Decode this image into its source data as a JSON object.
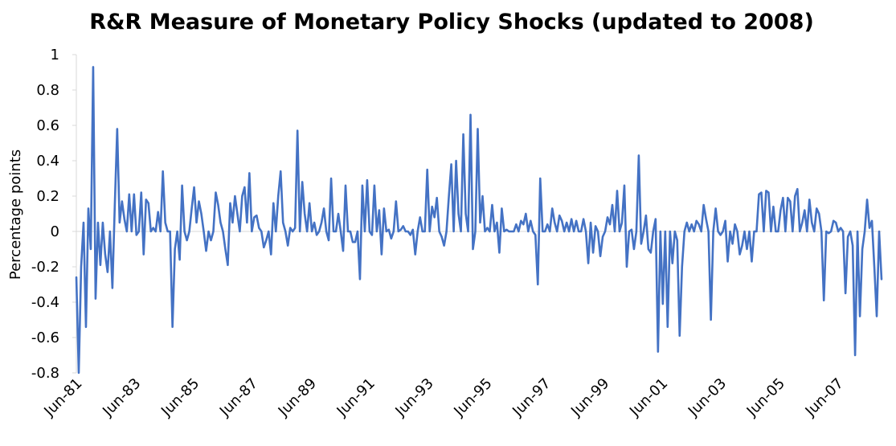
{
  "chart_data": {
    "type": "line",
    "title": "R&R Measure of Monetary Policy Shocks (updated to 2008)",
    "xlabel": "",
    "ylabel": "Percentage points",
    "ylim": [
      -0.8,
      1
    ],
    "y_ticks": [
      "1",
      "0.8",
      "0.6",
      "0.4",
      "0.2",
      "0",
      "-0.2",
      "-0.4",
      "-0.6",
      "-0.8"
    ],
    "x_tick_labels": [
      "Jun-81",
      "Jun-83",
      "Jun-85",
      "Jun-87",
      "Jun-89",
      "Jun-91",
      "Jun-93",
      "Jun-95",
      "Jun-97",
      "Jun-99",
      "Jun-01",
      "Jun-03",
      "Jun-05",
      "Jun-07"
    ],
    "grid": false,
    "legend": "none",
    "line_color": "#4472C4",
    "x_start": "1981-06",
    "x_end": "2008-12",
    "series": [
      {
        "values": [
          -0.26,
          -0.8,
          -0.2,
          0.05,
          -0.54,
          0.13,
          -0.1,
          0.93,
          -0.38,
          0.05,
          -0.19,
          0.05,
          -0.13,
          -0.23,
          0.0,
          -0.32,
          0.15,
          0.58,
          0.05,
          0.17,
          0.07,
          0.0,
          0.21,
          0.0,
          0.21,
          -0.02,
          0.0,
          0.22,
          -0.13,
          0.18,
          0.16,
          0.0,
          0.02,
          0.0,
          0.11,
          0.0,
          0.34,
          0.05,
          0.0,
          0.0,
          -0.54,
          -0.1,
          0.0,
          -0.16,
          0.26,
          0.0,
          -0.05,
          0.0,
          0.13,
          0.25,
          0.05,
          0.17,
          0.1,
          0.0,
          -0.11,
          0.0,
          -0.05,
          0.0,
          0.22,
          0.15,
          0.05,
          0.0,
          -0.1,
          -0.19,
          0.16,
          0.05,
          0.2,
          0.1,
          0.0,
          0.2,
          0.25,
          0.05,
          0.33,
          0.0,
          0.08,
          0.09,
          0.02,
          0.0,
          -0.09,
          -0.05,
          0.0,
          -0.13,
          0.16,
          0.0,
          0.2,
          0.34,
          0.05,
          0.0,
          -0.08,
          0.02,
          0.0,
          0.02,
          0.57,
          0.0,
          0.28,
          0.1,
          0.0,
          0.16,
          0.0,
          0.05,
          -0.02,
          0.0,
          0.05,
          0.13,
          0.0,
          -0.05,
          0.3,
          0.0,
          0.0,
          0.1,
          0.0,
          -0.11,
          0.26,
          0.0,
          0.0,
          -0.06,
          -0.06,
          0.0,
          -0.27,
          0.26,
          0.0,
          0.29,
          0.0,
          -0.02,
          0.26,
          0.0,
          0.12,
          -0.13,
          0.13,
          0.0,
          0.01,
          -0.04,
          0.0,
          0.17,
          0.0,
          0.01,
          0.03,
          0.0,
          0.0,
          -0.02,
          0.01,
          -0.13,
          0.0,
          0.08,
          0.0,
          0.0,
          0.35,
          0.0,
          0.14,
          0.08,
          0.19,
          0.0,
          -0.03,
          -0.08,
          0.0,
          0.2,
          0.38,
          0.0,
          0.4,
          0.1,
          0.0,
          0.55,
          0.1,
          0.0,
          0.66,
          -0.1,
          0.0,
          0.58,
          0.05,
          0.2,
          0.0,
          0.02,
          0.0,
          0.15,
          0.0,
          0.05,
          -0.12,
          0.13,
          0.0,
          0.01,
          0.0,
          0.0,
          0.0,
          0.04,
          0.0,
          0.06,
          0.04,
          0.1,
          0.0,
          0.06,
          0.0,
          -0.02,
          -0.3,
          0.3,
          0.0,
          0.0,
          0.04,
          0.0,
          0.13,
          0.05,
          0.0,
          0.09,
          0.06,
          0.0,
          0.05,
          0.0,
          0.07,
          0.0,
          0.06,
          0.0,
          0.0,
          0.07,
          0.0,
          -0.18,
          0.05,
          -0.12,
          0.03,
          0.0,
          -0.14,
          -0.03,
          0.0,
          0.08,
          0.04,
          0.15,
          0.0,
          0.23,
          0.0,
          0.05,
          0.26,
          -0.2,
          0.0,
          0.01,
          -0.1,
          0.0,
          0.43,
          -0.07,
          0.0,
          0.09,
          -0.1,
          -0.12,
          0.0,
          0.07,
          -0.68,
          0.0,
          -0.41,
          0.0,
          -0.54,
          0.0,
          -0.18,
          0.0,
          -0.05,
          -0.59,
          -0.2,
          0.0,
          0.05,
          0.0,
          0.04,
          0.0,
          0.06,
          0.04,
          0.0,
          0.15,
          0.07,
          0.0,
          -0.5,
          0.0,
          0.13,
          0.0,
          -0.02,
          0.0,
          0.06,
          -0.17,
          0.0,
          -0.07,
          0.04,
          0.0,
          -0.13,
          -0.08,
          0.0,
          -0.1,
          0.0,
          -0.17,
          0.0,
          0.0,
          0.21,
          0.22,
          0.0,
          0.23,
          0.22,
          0.0,
          0.14,
          0.0,
          0.0,
          0.12,
          0.19,
          0.0,
          0.19,
          0.17,
          0.0,
          0.2,
          0.24,
          0.0,
          0.05,
          0.12,
          0.0,
          0.18,
          0.05,
          0.0,
          0.13,
          0.1,
          0.0,
          -0.39,
          0.0,
          -0.01,
          0.0,
          0.06,
          0.05,
          0.0,
          0.02,
          0.0,
          -0.35,
          -0.03,
          0.0,
          -0.08,
          -0.7,
          0.0,
          -0.48,
          -0.1,
          0.0,
          0.18,
          0.02,
          0.06,
          -0.2,
          -0.48,
          0.0,
          -0.27
        ]
      }
    ]
  }
}
